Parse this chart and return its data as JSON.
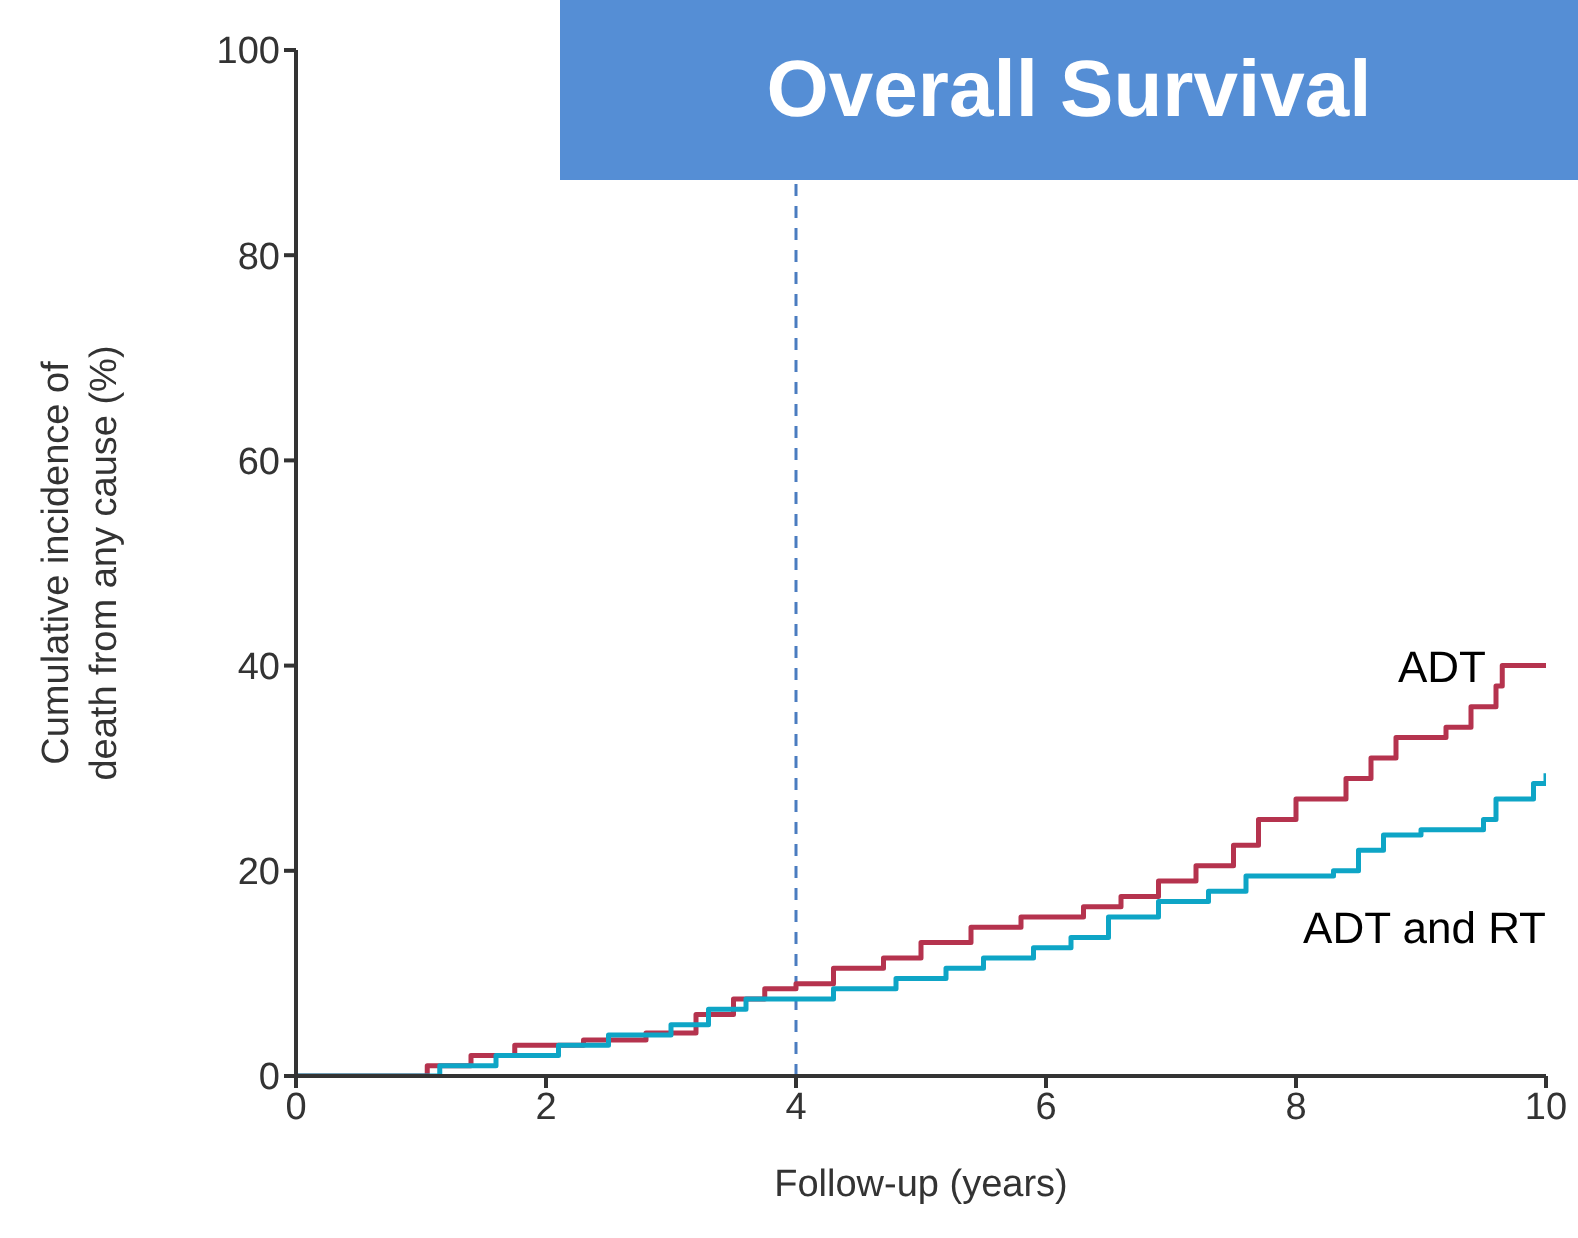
{
  "chart_data": {
    "type": "step",
    "title": "Overall Survival",
    "xlabel": "Follow-up (years)",
    "ylabel": "Cumulative incidence of death from any cause (%)",
    "xlim": [
      0,
      10
    ],
    "xticks": [
      0,
      2,
      4,
      6,
      8,
      10
    ],
    "ylim": [
      0,
      100
    ],
    "yticks": [
      0,
      20,
      40,
      60,
      80,
      100
    ],
    "ref_lines": [
      {
        "axis": "x",
        "value": 4,
        "color": "#4a7cc0",
        "line_style": "dashed"
      }
    ],
    "series": [
      {
        "name": "ADT",
        "color": "#b5334e",
        "x": [
          0,
          1.05,
          1.4,
          1.75,
          2.3,
          2.8,
          3.2,
          3.5,
          3.75,
          4.0,
          4.3,
          4.7,
          5.0,
          5.4,
          5.8,
          6.3,
          6.6,
          6.9,
          7.2,
          7.5,
          7.7,
          8.0,
          8.4,
          8.6,
          8.8,
          9.2,
          9.4,
          9.6,
          9.65,
          10
        ],
        "values": [
          0,
          1,
          2,
          3,
          3.5,
          4.2,
          6,
          7.5,
          8.5,
          9,
          10.5,
          11.5,
          13,
          14.5,
          15.5,
          16.5,
          17.5,
          19,
          20.5,
          22.5,
          25,
          27,
          29,
          31,
          33,
          34,
          36,
          38,
          40,
          40
        ]
      },
      {
        "name": "ADT and RT",
        "color": "#0ea5c6",
        "x": [
          0,
          1.15,
          1.6,
          2.1,
          2.5,
          3.0,
          3.3,
          3.6,
          4.3,
          4.8,
          5.2,
          5.5,
          5.9,
          6.2,
          6.5,
          6.9,
          7.3,
          7.6,
          8.3,
          8.5,
          8.7,
          9.0,
          9.5,
          9.6,
          9.9,
          10
        ],
        "values": [
          0,
          1,
          2,
          3,
          4,
          5,
          6.5,
          7.5,
          8.5,
          9.5,
          10.5,
          11.5,
          12.5,
          13.5,
          15.5,
          17,
          18,
          19.5,
          20,
          22,
          23.5,
          24,
          25,
          27,
          28.5,
          29.5
        ]
      }
    ]
  }
}
